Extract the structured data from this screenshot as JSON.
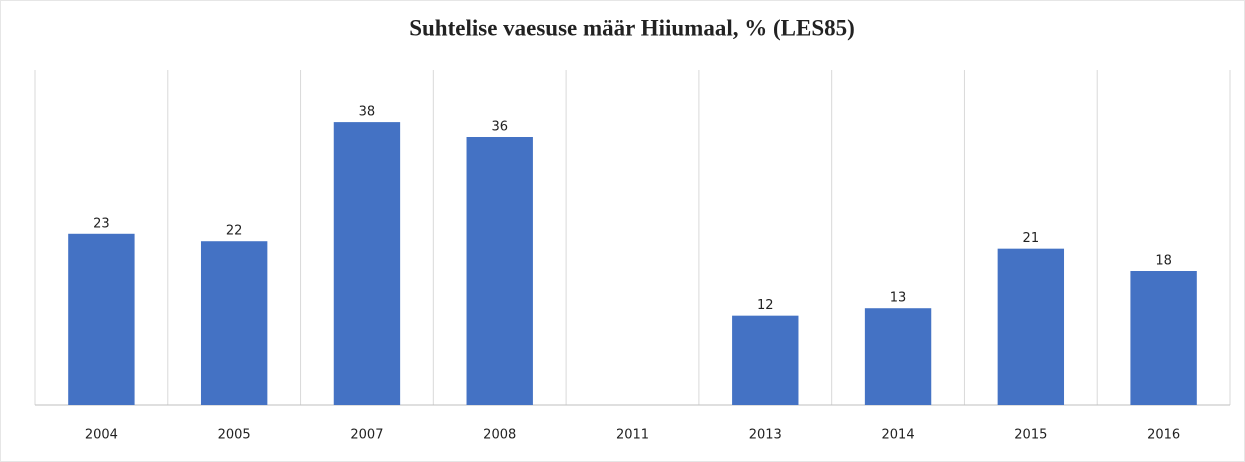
{
  "chart_data": {
    "type": "bar",
    "title": "Suhtelise vaesuse määr Hiiumaal, % (LES85)",
    "categories": [
      "2004",
      "2005",
      "2007",
      "2008",
      "2011",
      "2013",
      "2014",
      "2015",
      "2016"
    ],
    "values": [
      23,
      22,
      38,
      36,
      null,
      12,
      13,
      21,
      18
    ],
    "color": "#4472c4",
    "ylim": [
      0,
      45
    ],
    "data_labels": true,
    "category_grid": true
  }
}
